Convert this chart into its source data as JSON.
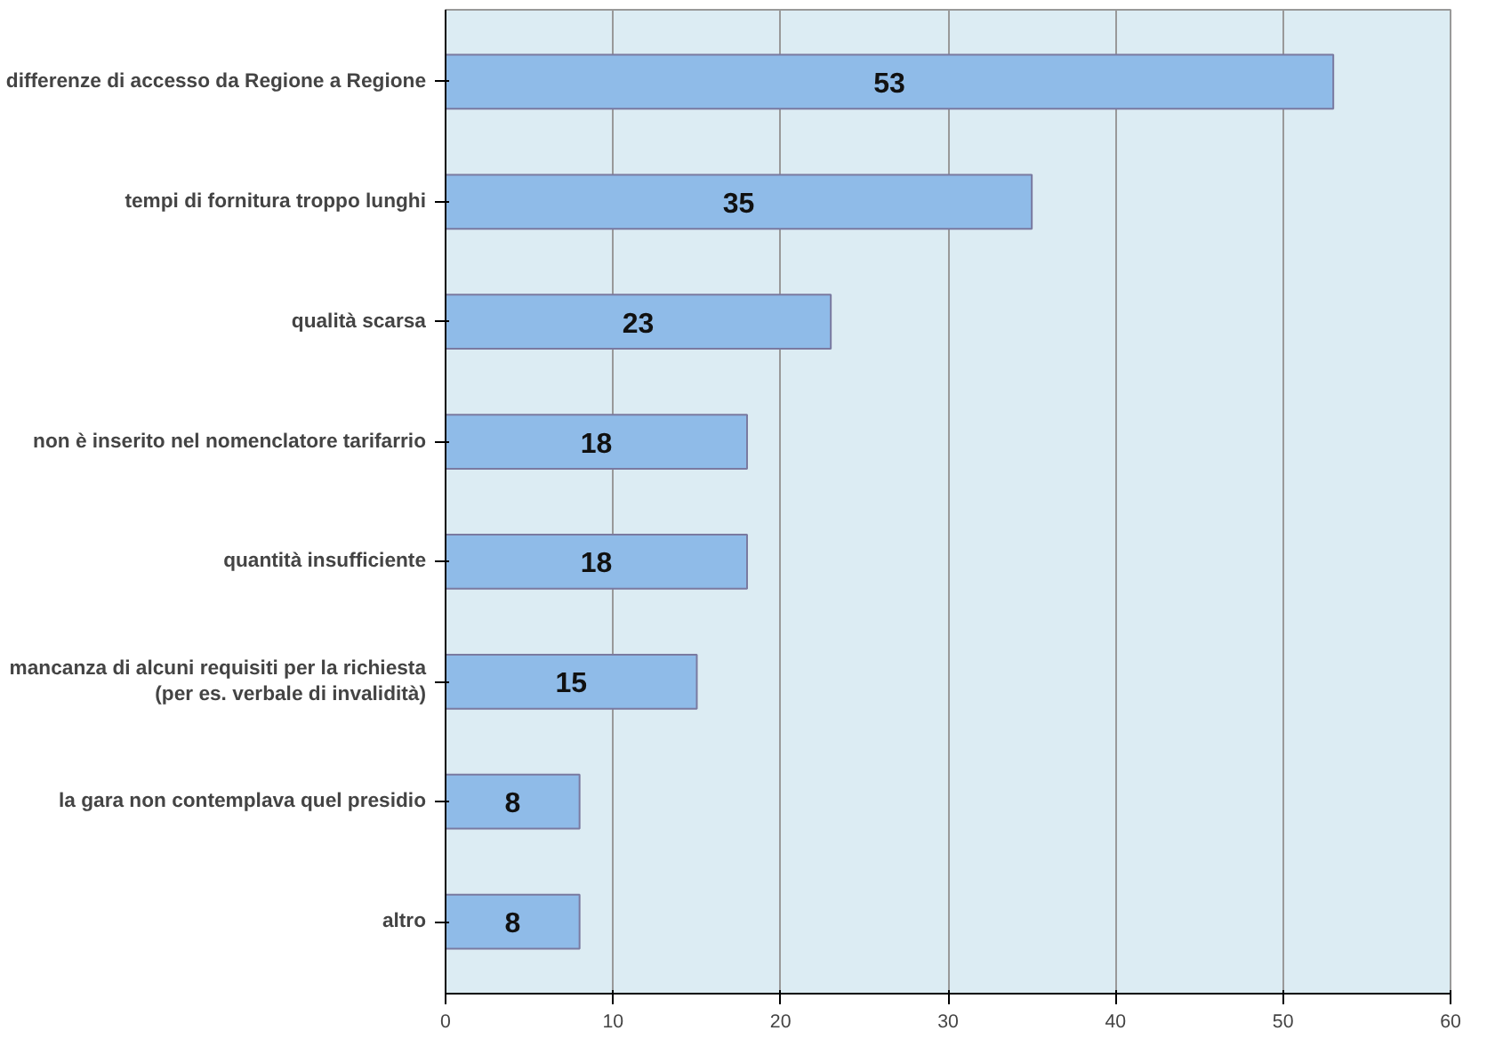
{
  "chart_data": {
    "type": "bar",
    "orientation": "horizontal",
    "categories": [
      "differenze di accesso da Regione a Regione",
      "tempi di fornitura troppo lunghi",
      "qualità scarsa",
      "non è inserito nel nomenclatore tarifarrio",
      "quantità insufficiente",
      "mancanza di alcuni requisiti per la richiesta\n(per es. verbale di invalidità)",
      "la gara non contemplava quel presidio",
      "altro"
    ],
    "values": [
      53,
      35,
      23,
      18,
      18,
      15,
      8,
      8
    ],
    "color": "#8fbbe8",
    "xlim": [
      0,
      60
    ],
    "xticks": [
      0,
      10,
      20,
      30,
      40,
      50,
      60
    ],
    "grid": "x",
    "data_labels": true
  }
}
